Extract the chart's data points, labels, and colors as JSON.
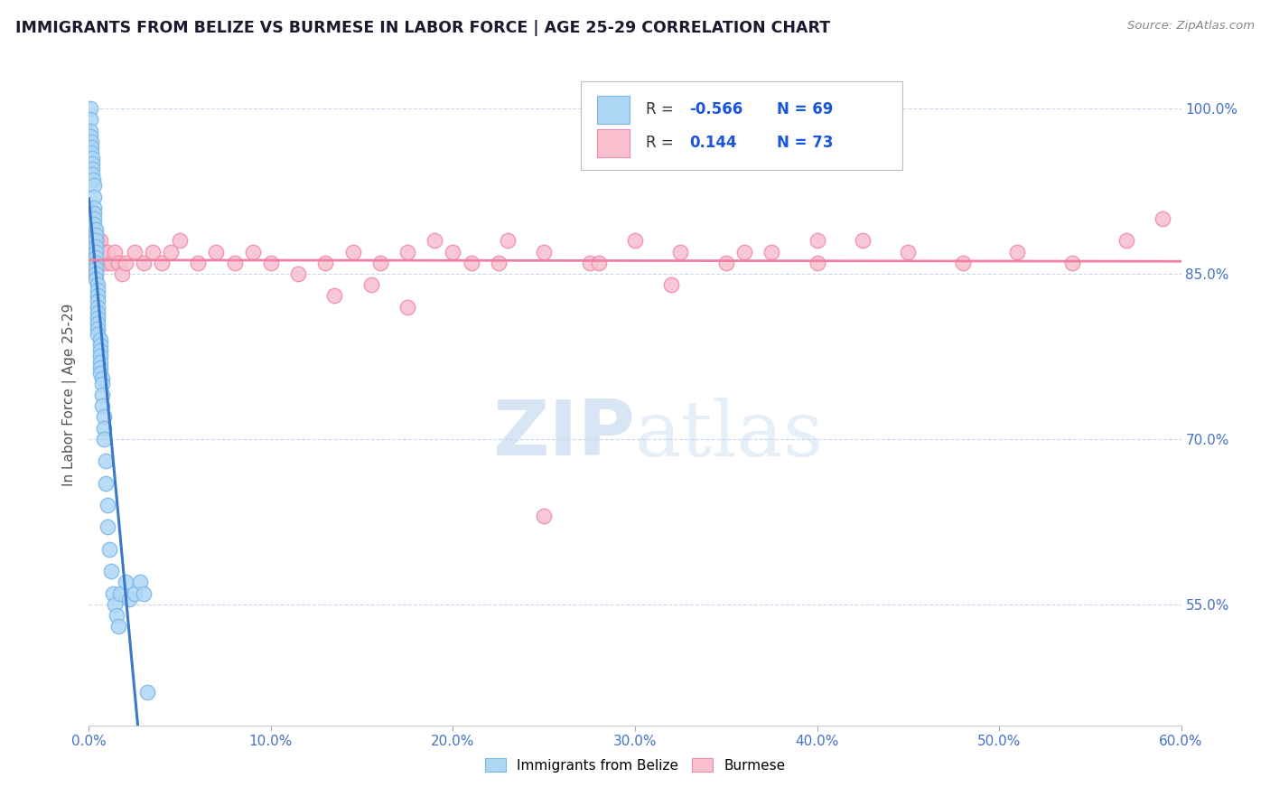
{
  "title": "IMMIGRANTS FROM BELIZE VS BURMESE IN LABOR FORCE | AGE 25-29 CORRELATION CHART",
  "source_text": "Source: ZipAtlas.com",
  "ylabel": "In Labor Force | Age 25-29",
  "xlim": [
    0.0,
    0.6
  ],
  "ylim": [
    0.44,
    1.04
  ],
  "xtick_labels": [
    "0.0%",
    "10.0%",
    "20.0%",
    "30.0%",
    "40.0%",
    "50.0%",
    "60.0%"
  ],
  "xtick_vals": [
    0.0,
    0.1,
    0.2,
    0.3,
    0.4,
    0.5,
    0.6
  ],
  "ytick_labels": [
    "55.0%",
    "70.0%",
    "85.0%",
    "100.0%"
  ],
  "ytick_vals": [
    0.55,
    0.7,
    0.85,
    1.0
  ],
  "belize_R": "-0.566",
  "belize_N": 69,
  "burmese_R": "0.144",
  "burmese_N": 73,
  "belize_color": "#aed6f5",
  "belize_edge_color": "#7ab8e8",
  "burmese_color": "#f9bfcf",
  "burmese_edge_color": "#f08aaa",
  "belize_line_color": "#3a78c9",
  "burmese_line_color": "#f080a0",
  "legend_r_color": "#1a56db",
  "background_color": "#ffffff",
  "grid_color": "#c8d8ee",
  "watermark_color": "#c8daf0",
  "belize_x": [
    0.0008,
    0.001,
    0.001,
    0.001,
    0.0012,
    0.0015,
    0.0015,
    0.002,
    0.002,
    0.002,
    0.002,
    0.0025,
    0.003,
    0.003,
    0.003,
    0.003,
    0.003,
    0.003,
    0.004,
    0.004,
    0.004,
    0.004,
    0.004,
    0.004,
    0.004,
    0.004,
    0.004,
    0.004,
    0.005,
    0.005,
    0.005,
    0.005,
    0.005,
    0.005,
    0.005,
    0.005,
    0.005,
    0.005,
    0.006,
    0.006,
    0.006,
    0.006,
    0.006,
    0.006,
    0.006,
    0.007,
    0.007,
    0.007,
    0.007,
    0.008,
    0.008,
    0.008,
    0.009,
    0.009,
    0.01,
    0.01,
    0.011,
    0.012,
    0.013,
    0.014,
    0.015,
    0.016,
    0.017,
    0.02,
    0.022,
    0.025,
    0.028,
    0.03,
    0.032
  ],
  "belize_y": [
    1.0,
    0.99,
    0.98,
    0.975,
    0.97,
    0.965,
    0.96,
    0.955,
    0.95,
    0.945,
    0.94,
    0.935,
    0.93,
    0.92,
    0.91,
    0.905,
    0.9,
    0.895,
    0.89,
    0.885,
    0.88,
    0.875,
    0.87,
    0.865,
    0.86,
    0.855,
    0.85,
    0.845,
    0.84,
    0.835,
    0.83,
    0.825,
    0.82,
    0.815,
    0.81,
    0.805,
    0.8,
    0.795,
    0.79,
    0.785,
    0.78,
    0.775,
    0.77,
    0.765,
    0.76,
    0.755,
    0.75,
    0.74,
    0.73,
    0.72,
    0.71,
    0.7,
    0.68,
    0.66,
    0.64,
    0.62,
    0.6,
    0.58,
    0.56,
    0.55,
    0.54,
    0.53,
    0.56,
    0.57,
    0.555,
    0.56,
    0.57,
    0.56,
    0.47
  ],
  "burmese_x": [
    0.001,
    0.001,
    0.001,
    0.002,
    0.002,
    0.002,
    0.003,
    0.003,
    0.003,
    0.003,
    0.004,
    0.004,
    0.004,
    0.004,
    0.005,
    0.005,
    0.005,
    0.006,
    0.006,
    0.006,
    0.007,
    0.007,
    0.008,
    0.009,
    0.01,
    0.012,
    0.014,
    0.016,
    0.018,
    0.02,
    0.025,
    0.03,
    0.035,
    0.04,
    0.045,
    0.05,
    0.06,
    0.07,
    0.08,
    0.09,
    0.1,
    0.115,
    0.13,
    0.145,
    0.16,
    0.175,
    0.19,
    0.21,
    0.23,
    0.25,
    0.275,
    0.3,
    0.325,
    0.35,
    0.375,
    0.4,
    0.425,
    0.45,
    0.48,
    0.51,
    0.54,
    0.57,
    0.59,
    0.135,
    0.155,
    0.175,
    0.2,
    0.225,
    0.25,
    0.28,
    0.32,
    0.36,
    0.4
  ],
  "burmese_y": [
    0.87,
    0.88,
    0.86,
    0.88,
    0.87,
    0.86,
    0.88,
    0.87,
    0.86,
    0.85,
    0.88,
    0.87,
    0.86,
    0.85,
    0.88,
    0.87,
    0.86,
    0.88,
    0.87,
    0.86,
    0.87,
    0.86,
    0.87,
    0.86,
    0.87,
    0.86,
    0.87,
    0.86,
    0.85,
    0.86,
    0.87,
    0.86,
    0.87,
    0.86,
    0.87,
    0.88,
    0.86,
    0.87,
    0.86,
    0.87,
    0.86,
    0.85,
    0.86,
    0.87,
    0.86,
    0.87,
    0.88,
    0.86,
    0.88,
    0.87,
    0.86,
    0.88,
    0.87,
    0.86,
    0.87,
    0.86,
    0.88,
    0.87,
    0.86,
    0.87,
    0.86,
    0.88,
    0.9,
    0.83,
    0.84,
    0.82,
    0.87,
    0.86,
    0.63,
    0.86,
    0.84,
    0.87,
    0.88
  ]
}
